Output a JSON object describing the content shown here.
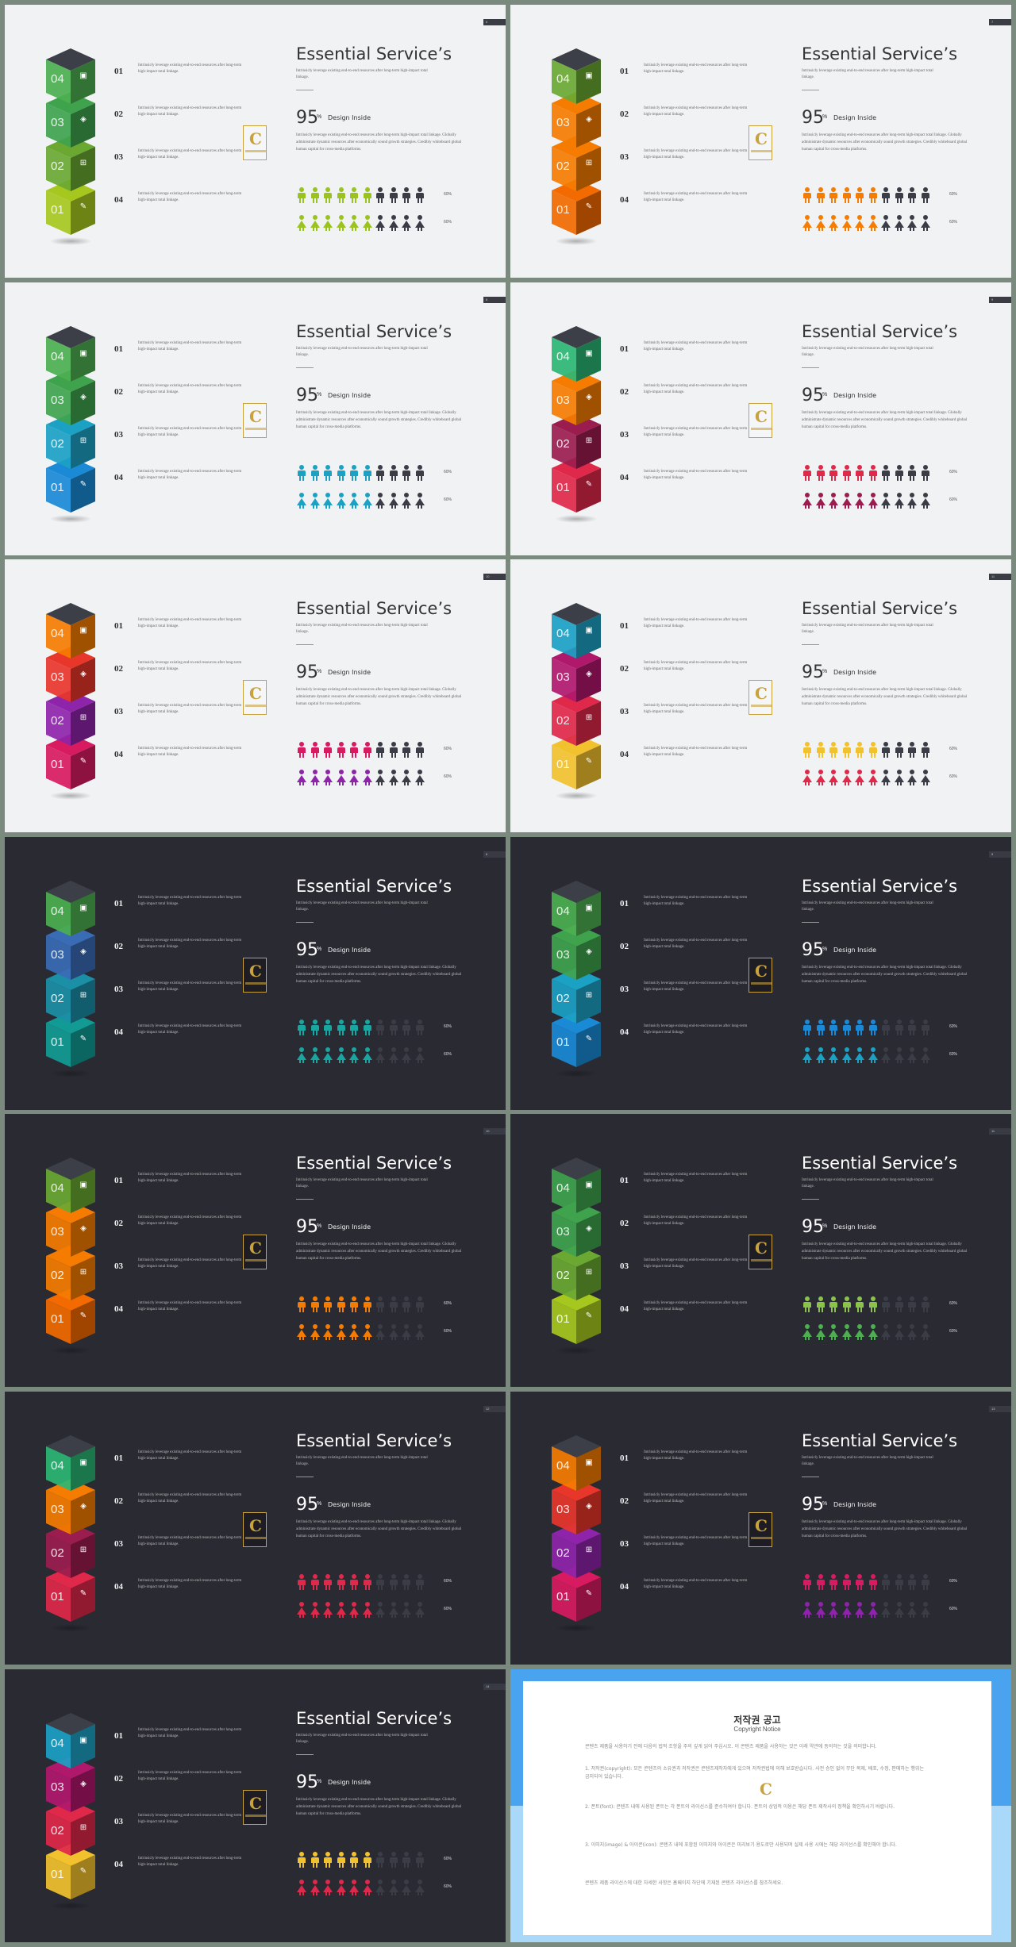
{
  "common": {
    "title": "Essential Service’s",
    "subtitle": "Intrinsicly leverage existing end-to-end resources after long-term high-impact total linkage.",
    "big_number": "95",
    "big_unit": "%",
    "big_label": "Design Inside",
    "body": "Intrinsicly leverage existing end-to-end resources after long-term high-impact total linkage. Globally administrate dynamic resources after economically sound growth strategies. Credibly whiteboard global human capital for cross-media platforms.",
    "list": [
      {
        "num": "01",
        "text": "Intrinsicly leverage existing end-to-end resources after long-term high-impact total linkage."
      },
      {
        "num": "02",
        "text": "Intrinsicly leverage existing end-to-end resources after long-term high-impact total linkage."
      },
      {
        "num": "03",
        "text": "Intrinsicly leverage existing end-to-end resources after long-term high-impact total linkage."
      },
      {
        "num": "04",
        "text": "Intrinsicly leverage existing end-to-end resources after long-term high-impact total linkage."
      }
    ],
    "row1_value": "60%",
    "row2_value": "60%",
    "row1_filled": 6,
    "row2_filled": 6,
    "people_total": 10
  },
  "slides": [
    {
      "page": "6",
      "theme": "light",
      "cubes": [
        "#4caf50",
        "#3fa34d",
        "#6aa832",
        "#a6c81e"
      ],
      "people_color": "#9bc31e"
    },
    {
      "page": "7",
      "theme": "light",
      "cubes": [
        "#6aa832",
        "#f57c00",
        "#f57c00",
        "#f26a00"
      ],
      "people_color": "#f57c00"
    },
    {
      "page": "8",
      "theme": "light",
      "cubes": [
        "#4caf50",
        "#3fa34d",
        "#1ba1c4",
        "#1a8ad6"
      ],
      "people_color": "#1ba1c4"
    },
    {
      "page": "9",
      "theme": "light",
      "cubes": [
        "#2bb673",
        "#f57c00",
        "#9b1d4f",
        "#e0284a"
      ],
      "people_color": "#e0284a"
    },
    {
      "page": "10",
      "theme": "light",
      "cubes": [
        "#f57c00",
        "#e8362b",
        "#8e24aa",
        "#d81b60"
      ],
      "people_color": "#d81b60"
    },
    {
      "page": "11",
      "theme": "light",
      "cubes": [
        "#1ba1c4",
        "#b0186c",
        "#e0284a",
        "#f2c12e"
      ],
      "people_color": "#f2c12e"
    },
    {
      "page": "6",
      "theme": "dark",
      "cubes": [
        "#4caf50",
        "#3a6bb5",
        "#1b8fa6",
        "#129b94"
      ],
      "people_color": "#19a6a0"
    },
    {
      "page": "9",
      "theme": "dark",
      "cubes": [
        "#4caf50",
        "#3fa34d",
        "#1ba1c4",
        "#1a8ad6"
      ],
      "people_color": "#1a8ad6"
    },
    {
      "page": "10",
      "theme": "dark",
      "cubes": [
        "#6aa832",
        "#f57c00",
        "#f57c00",
        "#f26a00"
      ],
      "people_color": "#f57c00"
    },
    {
      "page": "11",
      "theme": "dark",
      "cubes": [
        "#3fa34d",
        "#3fa34d",
        "#6aa832",
        "#a6c81e"
      ],
      "people_color": "#8bc34a"
    },
    {
      "page": "12",
      "theme": "dark",
      "cubes": [
        "#2bb673",
        "#f57c00",
        "#9b1d4f",
        "#e0284a"
      ],
      "people_color": "#e0284a"
    },
    {
      "page": "13",
      "theme": "dark",
      "cubes": [
        "#f57c00",
        "#e8362b",
        "#8e24aa",
        "#d81b60"
      ],
      "people_color": "#d81b60"
    },
    {
      "page": "14",
      "theme": "dark",
      "cubes": [
        "#1ba1c4",
        "#b0186c",
        "#e0284a",
        "#f2c12e"
      ],
      "people_color": "#f2c12e"
    }
  ],
  "row2_colors": [
    "#9bc31e",
    "#f57c00",
    "#1ba1c4",
    "#9b1d4f",
    "#8e24aa",
    "#e0284a",
    "#19a6a0",
    "#1ba1c4",
    "#f57c00",
    "#4caf50",
    "#e0284a",
    "#8e24aa",
    "#e0284a"
  ],
  "copyright": {
    "title": "저작권 공고",
    "subtitle": "Copyright Notice",
    "intro": "콘텐츠 제품을 사용하기 전에 다음의 법적 조항을 주의 깊게 읽어 주십시오. 이 콘텐츠 제품을 사용하는 것은 이래 약관에 동의하는 것을 의미합니다.",
    "p1": "1. 저작권(copyright): 모든 콘텐츠의 소유권과 저작권은 콘텐츠제작자에게 있으며 저작권법에 의해 보호받습니다. 사전 승인 없이 무단 복제, 배포, 수정, 판매하는 행위는 금지되어 있습니다.",
    "p2": "2. 폰트(font): 콘텐츠 내에 사용된 폰트는 각 폰트의 라이선스를 준수하여야 합니다. 폰트의 상업적 이용은 해당 폰트 제작사의 정책을 확인하시기 바랍니다.",
    "p3": "3. 이미지(image) & 아이콘(icon): 콘텐츠 내에 포함된 이미지와 아이콘은 미리보기 용도로만 사용되며 실제 사용 시에는 해당 라이선스를 확인해야 합니다.",
    "outro": "콘텐츠 제품 라이선스에 대한 자세한 사항은 홈페이지 하단에 기재된 콘텐츠 라이선스를 참조하세요."
  }
}
